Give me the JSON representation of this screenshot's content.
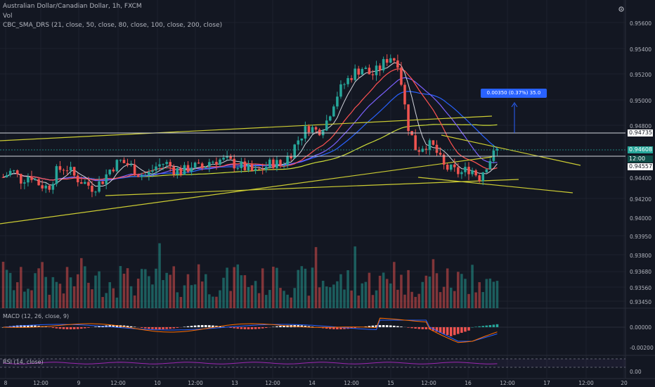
{
  "header": {
    "symbol": "Australian Dollar/Canadian Dollar, 1h, FXCM",
    "vol_label": "Vol",
    "sma_label": "CBC_SMA_DRS (21, close, 50, close, 80, close, 100, close, 200, close)"
  },
  "indicators": {
    "macd_label": "MACD (12, 26, close, 9)",
    "rsi_label": "RSI (14, close)"
  },
  "measure_label": "0.00350 (0.37%) 35.0",
  "price_axis": {
    "ticks": [
      "0.95600",
      "0.95400",
      "0.95200",
      "0.95000",
      "0.94800",
      "0.94400",
      "0.94200",
      "0.94000",
      "0.93950",
      "0.93800",
      "0.93680",
      "0.93560",
      "0.93450"
    ],
    "tags": [
      {
        "label": "0.94735",
        "style": "white"
      },
      {
        "label": "0.94608",
        "style": "teal"
      },
      {
        "label": "12:00",
        "style": "dark"
      },
      {
        "label": "0.94557",
        "style": "white"
      }
    ]
  },
  "macd_axis": [
    "0.00000",
    "-0.00200"
  ],
  "rsi_axis": [
    "0.00"
  ],
  "time_axis": [
    "8",
    "12:00",
    "9",
    "12:00",
    "10",
    "12:00",
    "13",
    "12:00",
    "14",
    "12:00",
    "15",
    "12:00",
    "16",
    "12:00",
    "17",
    "12:00",
    "20"
  ],
  "colors": {
    "background": "#131722",
    "up": "#26a69a",
    "down": "#ef5350",
    "sma21": "#d1d4dc",
    "sma50": "#ff5252",
    "sma80": "#7b61ff",
    "sma100": "#2962ff",
    "sma200": "#cddc39",
    "trendline": "#cccc33",
    "macd": "#2962ff",
    "signal": "#ff6d00",
    "rsi": "#9c27b0"
  },
  "icons": [
    "settings-icon"
  ],
  "chart_data": {
    "type": "candlestick",
    "title": "Australian Dollar/Canadian Dollar, 1h, FXCM",
    "ylim": [
      0.9342,
      0.9562
    ],
    "x": [
      "8",
      "12:00",
      "9",
      "12:00",
      "10",
      "12:00",
      "13",
      "12:00",
      "14",
      "12:00",
      "15",
      "12:00",
      "16",
      "12:00",
      "17",
      "12:00",
      "20"
    ],
    "close_path": [
      0.944,
      0.9445,
      0.9438,
      0.9442,
      0.9435,
      0.9432,
      0.9445,
      0.9448,
      0.944,
      0.9436,
      0.9432,
      0.9437,
      0.9447,
      0.9452,
      0.9449,
      0.9443,
      0.9441,
      0.9448,
      0.9451,
      0.9446,
      0.9444,
      0.9449,
      0.9446,
      0.9452,
      0.9453,
      0.9452,
      0.9449,
      0.9447,
      0.9443,
      0.9447,
      0.9451,
      0.9449,
      0.9458,
      0.947,
      0.9478,
      0.9474,
      0.9482,
      0.95,
      0.951,
      0.9518,
      0.9522,
      0.9516,
      0.9522,
      0.9531,
      0.9526,
      0.948,
      0.946,
      0.9465,
      0.9462,
      0.9448,
      0.9445,
      0.9443,
      0.9447,
      0.944,
      0.9452,
      0.946
    ]
  }
}
